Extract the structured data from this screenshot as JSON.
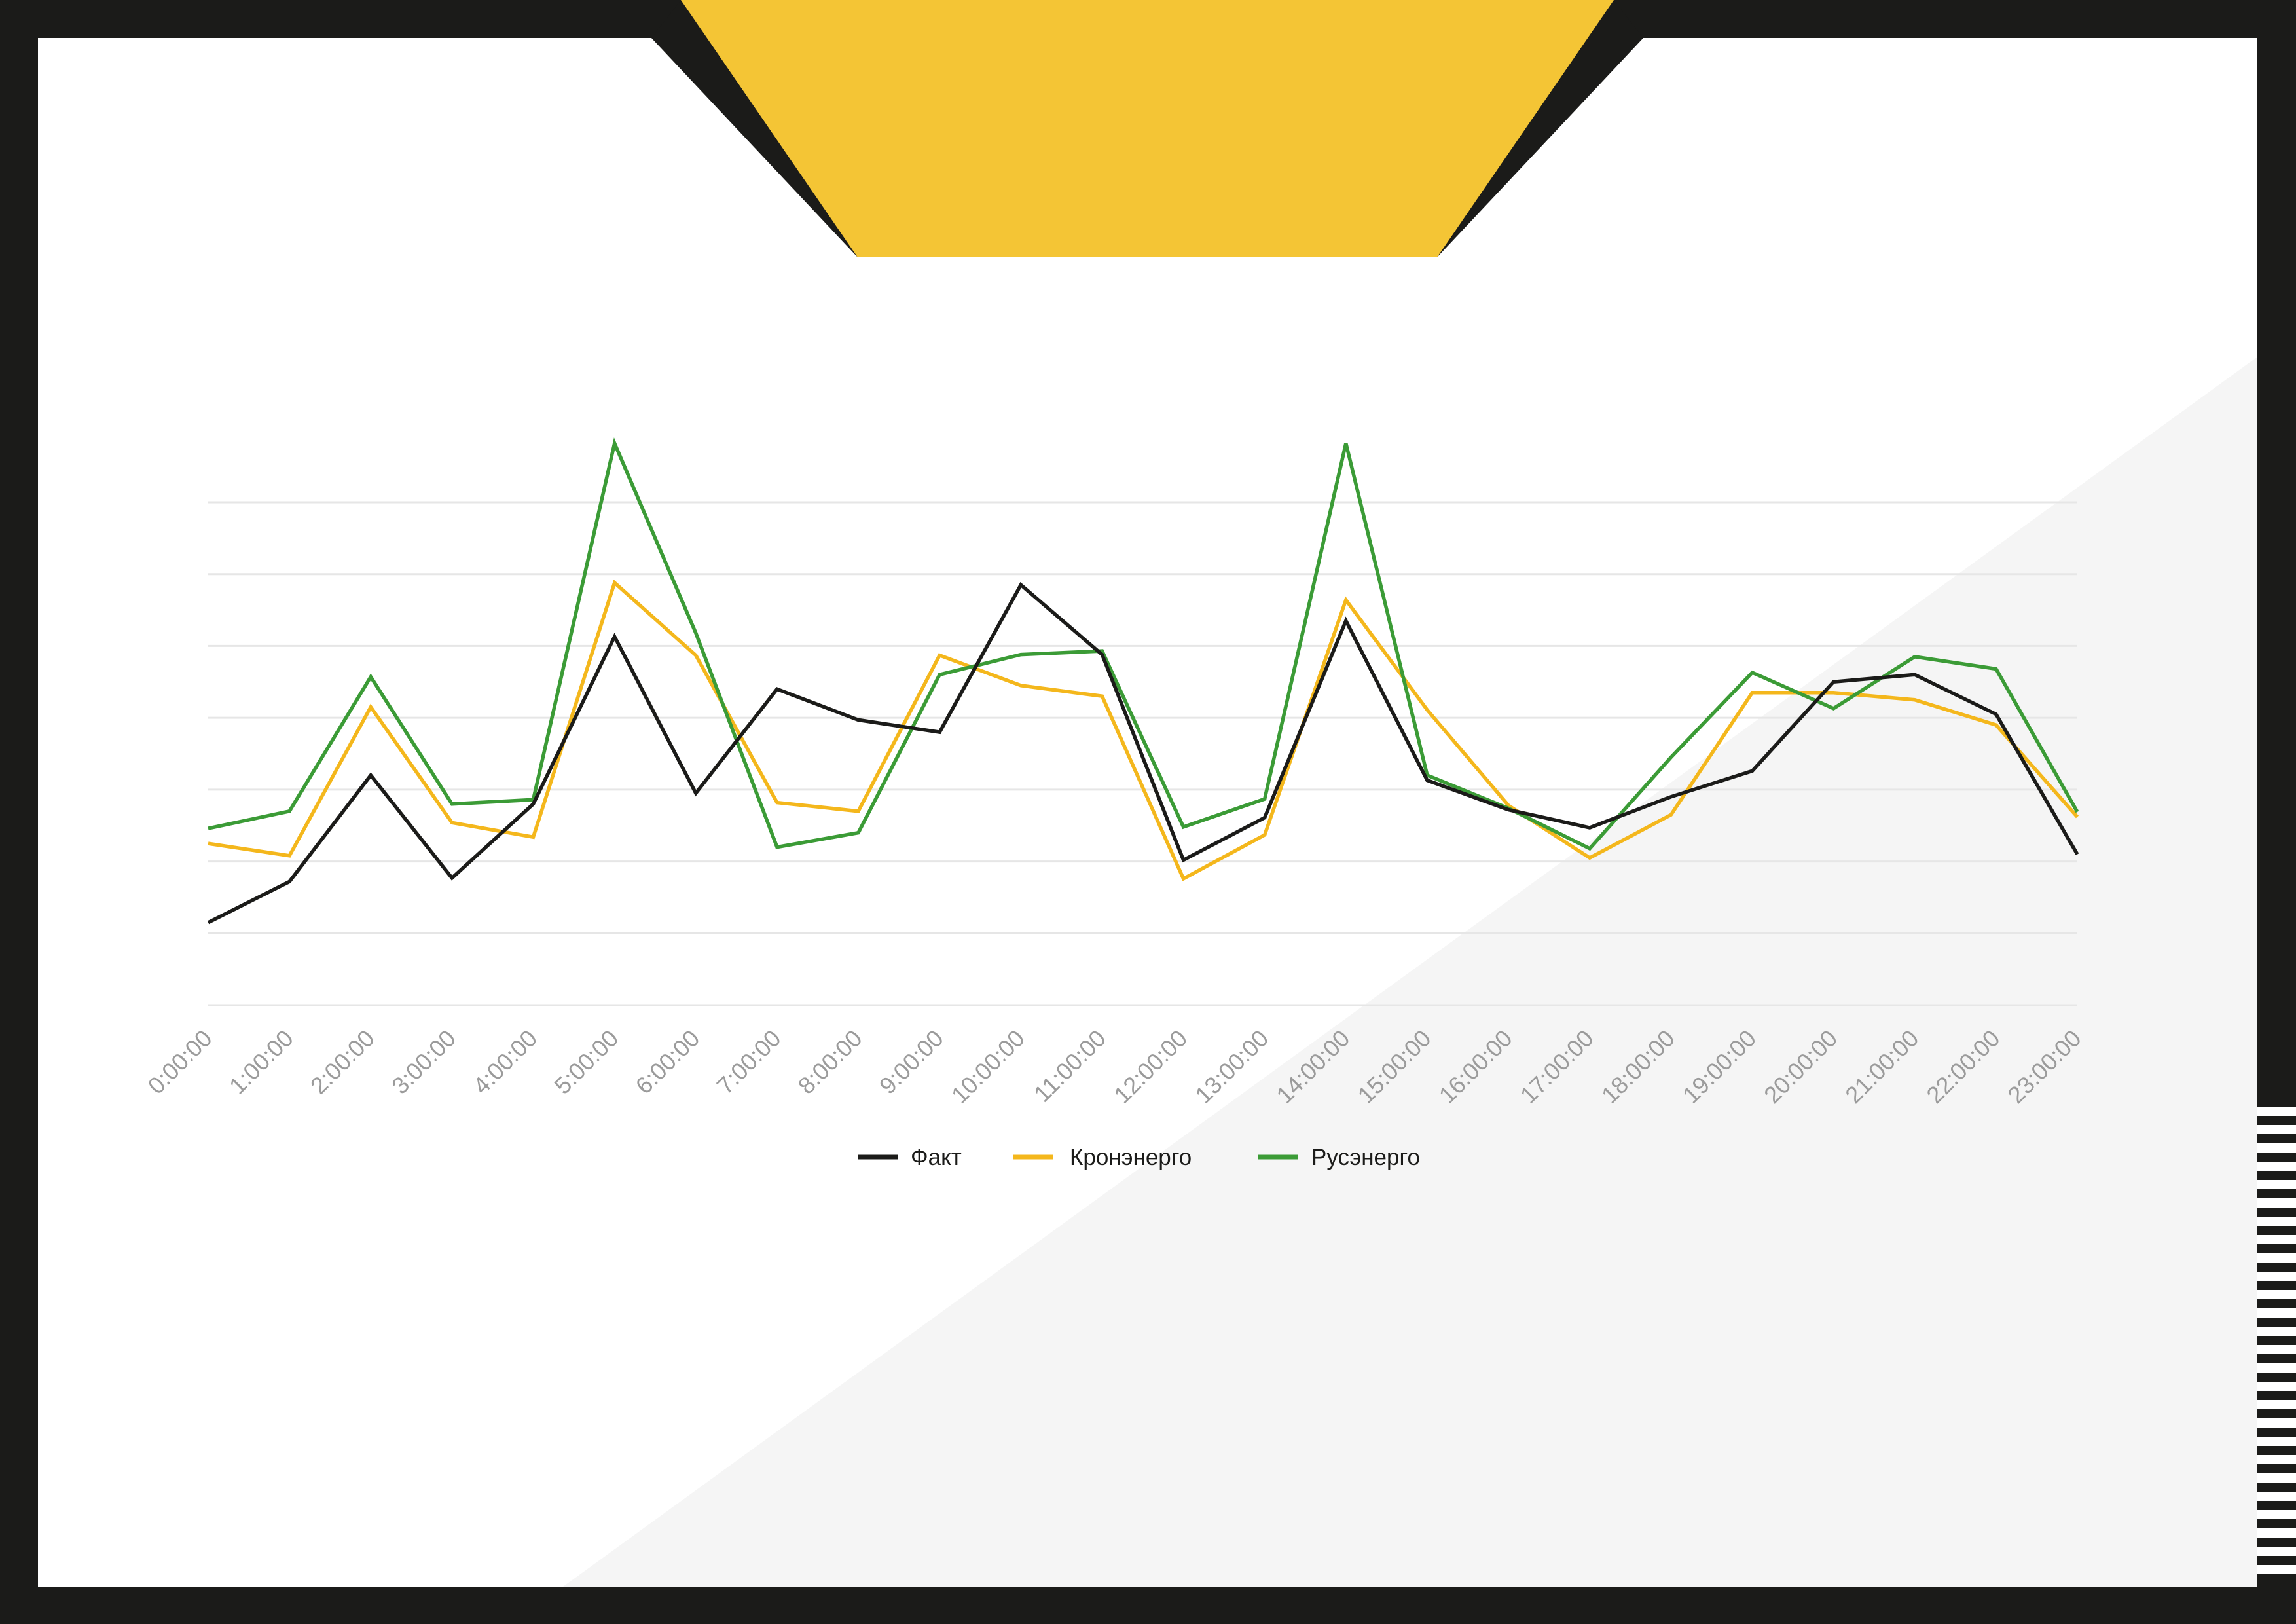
{
  "colors": {
    "frame": "#1b1b19",
    "panel": "#ffffff",
    "shade": "#f5f5f5",
    "accent": "#f4c535",
    "grid": "#e6e6e6",
    "tick_label": "#9b9b9b",
    "legend_text": "#1b1b19"
  },
  "chart_data": {
    "type": "line",
    "title": "",
    "xlabel": "",
    "ylabel": "",
    "grid": true,
    "legend_position": "bottom-center",
    "categories": [
      "0:00:00",
      "1:00:00",
      "2:00:00",
      "3:00:00",
      "4:00:00",
      "5:00:00",
      "6:00:00",
      "7:00:00",
      "8:00:00",
      "9:00:00",
      "10:00:00",
      "11:00:00",
      "12:00:00",
      "13:00:00",
      "14:00:00",
      "15:00:00",
      "16:00:00",
      "17:00:00",
      "18:00:00",
      "19:00:00",
      "20:00:00",
      "21:00:00",
      "22:00:00",
      "23:00:00"
    ],
    "ylim": [
      0,
      7
    ],
    "series": [
      {
        "name": "Факт",
        "color": "#1b1b19",
        "values": [
          1.15,
          1.72,
          3.2,
          1.77,
          2.8,
          5.13,
          2.95,
          4.4,
          3.97,
          3.8,
          5.85,
          4.88,
          2.02,
          2.61,
          5.35,
          3.13,
          2.72,
          2.47,
          2.9,
          3.26,
          4.5,
          4.6,
          4.05,
          2.1
        ]
      },
      {
        "name": "Кронэнерго",
        "color": "#f4b71c",
        "values": [
          2.25,
          2.08,
          4.15,
          2.54,
          2.34,
          5.88,
          4.87,
          2.82,
          2.7,
          4.87,
          4.45,
          4.3,
          1.76,
          2.37,
          5.64,
          4.11,
          2.78,
          2.05,
          2.65,
          4.35,
          4.35,
          4.25,
          3.9,
          2.62
        ]
      },
      {
        "name": "Русэнерго",
        "color": "#3b9b36",
        "values": [
          2.46,
          2.7,
          4.57,
          2.8,
          2.86,
          7.82,
          5.18,
          2.2,
          2.4,
          4.6,
          4.88,
          4.93,
          2.48,
          2.87,
          7.82,
          3.2,
          2.74,
          2.18,
          3.45,
          4.63,
          4.13,
          4.85,
          4.68,
          2.69
        ]
      }
    ]
  }
}
